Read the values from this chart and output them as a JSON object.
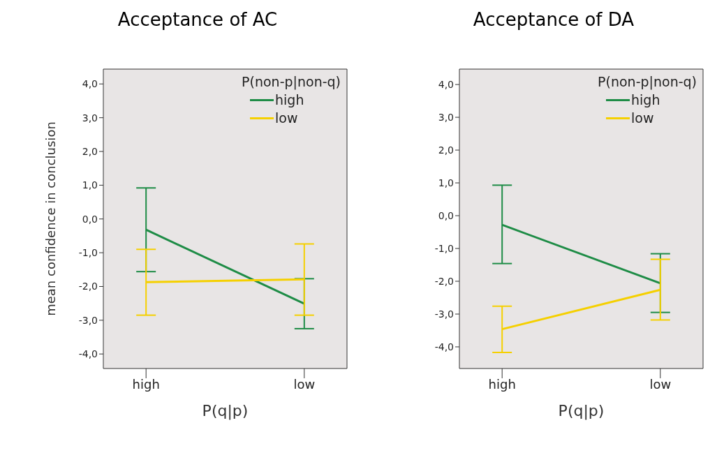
{
  "chart_data": [
    {
      "type": "line",
      "title": "Acceptance of AC",
      "xlabel": "P(q|p)",
      "ylabel": "mean confidence in conclusion",
      "legend_title": "P(non-p|non-q)",
      "legend": "top right",
      "categories": [
        "high",
        "low"
      ],
      "ylim": [
        -4.43,
        4.44
      ],
      "yticks": [
        {
          "value": -4,
          "label": "-4,0"
        },
        {
          "value": -3,
          "label": "-3,0"
        },
        {
          "value": -2,
          "label": "-2,0"
        },
        {
          "value": -1,
          "label": "-1,0"
        },
        {
          "value": 0,
          "label": "0,0"
        },
        {
          "value": 1,
          "label": "1,0"
        },
        {
          "value": 2,
          "label": "2,0"
        },
        {
          "value": 3,
          "label": "3,0"
        },
        {
          "value": 4,
          "label": "4,0"
        }
      ],
      "series": [
        {
          "name": "high",
          "color": "#1e8c46",
          "values": [
            -0.32,
            -2.51
          ],
          "errors": [
            [
              -1.56,
              0.92
            ],
            [
              -3.25,
              -1.77
            ]
          ]
        },
        {
          "name": "low",
          "color": "#f5d000",
          "values": [
            -1.87,
            -1.79
          ],
          "errors": [
            [
              -2.85,
              -0.9
            ],
            [
              -2.85,
              -0.74
            ]
          ]
        }
      ]
    },
    {
      "type": "line",
      "title": "Acceptance of DA",
      "xlabel": "P(q|p)",
      "legend_title": "P(non-p|non-q)",
      "legend": "top right",
      "categories": [
        "high",
        "low"
      ],
      "ylim": [
        -4.66,
        4.47
      ],
      "yticks": [
        {
          "value": -4,
          "label": "-4,0"
        },
        {
          "value": -3,
          "label": "-3,0"
        },
        {
          "value": -2,
          "label": "-2,0"
        },
        {
          "value": -1,
          "label": "-1,0"
        },
        {
          "value": 0,
          "label": "0,0"
        },
        {
          "value": 1,
          "label": "1,0"
        },
        {
          "value": 2,
          "label": "2,0"
        },
        {
          "value": 3,
          "label": "3,0"
        },
        {
          "value": 4,
          "label": "4,0"
        }
      ],
      "series": [
        {
          "name": "high",
          "color": "#1e8c46",
          "values": [
            -0.28,
            -2.06
          ],
          "errors": [
            [
              -1.46,
              0.93
            ],
            [
              -2.95,
              -1.16
            ]
          ]
        },
        {
          "name": "low",
          "color": "#f5d000",
          "values": [
            -3.46,
            -2.26
          ],
          "errors": [
            [
              -4.17,
              -2.76
            ],
            [
              -3.18,
              -1.33
            ]
          ]
        }
      ]
    }
  ]
}
